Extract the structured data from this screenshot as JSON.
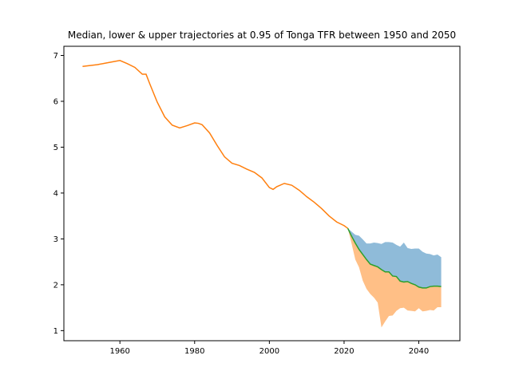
{
  "chart_data": {
    "type": "area",
    "title": "Median, lower & upper trajectories at 0.95 of Tonga TFR between 1950 and 2050",
    "xlabel": "",
    "ylabel": "",
    "xlim": [
      1945,
      2051
    ],
    "ylim": [
      0.78,
      7.2
    ],
    "xticks": [
      1960,
      1980,
      2000,
      2020,
      2040
    ],
    "yticks": [
      1,
      2,
      3,
      4,
      5,
      6,
      7
    ],
    "grid": false,
    "legend": null,
    "colors": {
      "upper_band": "#1f77b4",
      "lower_band": "#ff7f0e",
      "historical": "#ff7f0e",
      "median": "#2ca02c"
    },
    "historical": {
      "x": [
        1950,
        1952,
        1954,
        1956,
        1958,
        1960,
        1962,
        1964,
        1966,
        1967,
        1968,
        1970,
        1972,
        1974,
        1976,
        1978,
        1980,
        1981,
        1982,
        1984,
        1986,
        1988,
        1990,
        1992,
        1994,
        1996,
        1998,
        2000,
        2001,
        2002,
        2004,
        2006,
        2008,
        2010,
        2012,
        2014,
        2016,
        2018,
        2020,
        2021
      ],
      "y": [
        6.76,
        6.78,
        6.8,
        6.83,
        6.86,
        6.89,
        6.82,
        6.74,
        6.59,
        6.59,
        6.38,
        5.98,
        5.66,
        5.48,
        5.42,
        5.47,
        5.53,
        5.52,
        5.49,
        5.31,
        5.04,
        4.79,
        4.65,
        4.6,
        4.52,
        4.45,
        4.33,
        4.12,
        4.08,
        4.14,
        4.21,
        4.17,
        4.06,
        3.92,
        3.8,
        3.66,
        3.5,
        3.37,
        3.29,
        3.23
      ]
    },
    "projection": {
      "x": [
        2021,
        2022,
        2023,
        2024,
        2025,
        2026,
        2027,
        2028,
        2029,
        2030,
        2031,
        2032,
        2033,
        2034,
        2035,
        2036,
        2037,
        2038,
        2039,
        2040,
        2041,
        2042,
        2043,
        2044,
        2045,
        2046
      ],
      "median": [
        3.23,
        3.06,
        2.91,
        2.77,
        2.66,
        2.55,
        2.45,
        2.42,
        2.39,
        2.33,
        2.28,
        2.28,
        2.19,
        2.18,
        2.08,
        2.06,
        2.07,
        2.03,
        2.0,
        1.95,
        1.93,
        1.93,
        1.96,
        1.97,
        1.97,
        1.96
      ],
      "lower": [
        3.23,
        2.9,
        2.55,
        2.38,
        2.09,
        1.91,
        1.8,
        1.72,
        1.61,
        1.07,
        1.2,
        1.32,
        1.33,
        1.43,
        1.49,
        1.5,
        1.44,
        1.43,
        1.42,
        1.49,
        1.42,
        1.43,
        1.45,
        1.44,
        1.51,
        1.51
      ],
      "upper": [
        3.23,
        3.16,
        3.09,
        3.07,
        2.99,
        2.9,
        2.9,
        2.92,
        2.91,
        2.89,
        2.93,
        2.93,
        2.92,
        2.87,
        2.83,
        2.92,
        2.8,
        2.78,
        2.79,
        2.79,
        2.72,
        2.68,
        2.67,
        2.64,
        2.66,
        2.6
      ]
    }
  }
}
